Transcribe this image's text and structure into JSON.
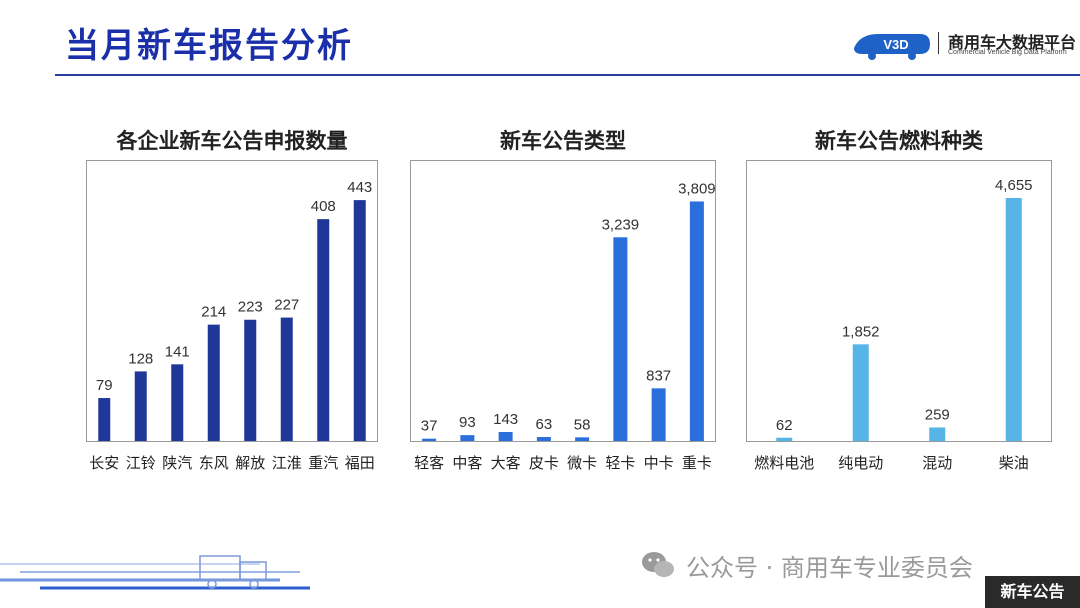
{
  "page": {
    "title": "当月新车报告分析",
    "logo_main": "商用车大数据平台",
    "logo_sub": "Commercial Vehicle Big Data Platform",
    "logo_mark": "V3D",
    "watermark": "公众号 · 商用车专业委员会",
    "footer_tag": "新车公告"
  },
  "colors": {
    "title": "#1a2fa8",
    "chart1_bar": "#1e3799",
    "chart2_bar": "#2b6fdc",
    "chart3_bar": "#56b4e6"
  },
  "chart_data": [
    {
      "type": "bar",
      "title": "各企业新车公告申报数量",
      "categories": [
        "长安",
        "江铃",
        "陕汽",
        "东风",
        "解放",
        "江淮",
        "重汽",
        "福田"
      ],
      "values": [
        79,
        128,
        141,
        214,
        223,
        227,
        408,
        443
      ],
      "value_labels": [
        "79",
        "128",
        "141",
        "214",
        "223",
        "227",
        "408",
        "443"
      ],
      "ylim": [
        0,
        480
      ],
      "grid": false
    },
    {
      "type": "bar",
      "title": "新车公告类型",
      "categories": [
        "轻客",
        "中客",
        "大客",
        "皮卡",
        "微卡",
        "轻卡",
        "中卡",
        "重卡"
      ],
      "values": [
        37,
        93,
        143,
        63,
        58,
        3239,
        837,
        3809
      ],
      "value_labels": [
        "37",
        "93",
        "143",
        "63",
        "58",
        "3,239",
        "837",
        "3,809"
      ],
      "ylim": [
        0,
        4150
      ],
      "grid": false
    },
    {
      "type": "bar",
      "title": "新车公告燃料种类",
      "categories": [
        "燃料电池",
        "纯电动",
        "混动",
        "柴油"
      ],
      "values": [
        62,
        1852,
        259,
        4655
      ],
      "value_labels": [
        "62",
        "1,852",
        "259",
        "4,655"
      ],
      "ylim": [
        0,
        5000
      ],
      "grid": false
    }
  ]
}
